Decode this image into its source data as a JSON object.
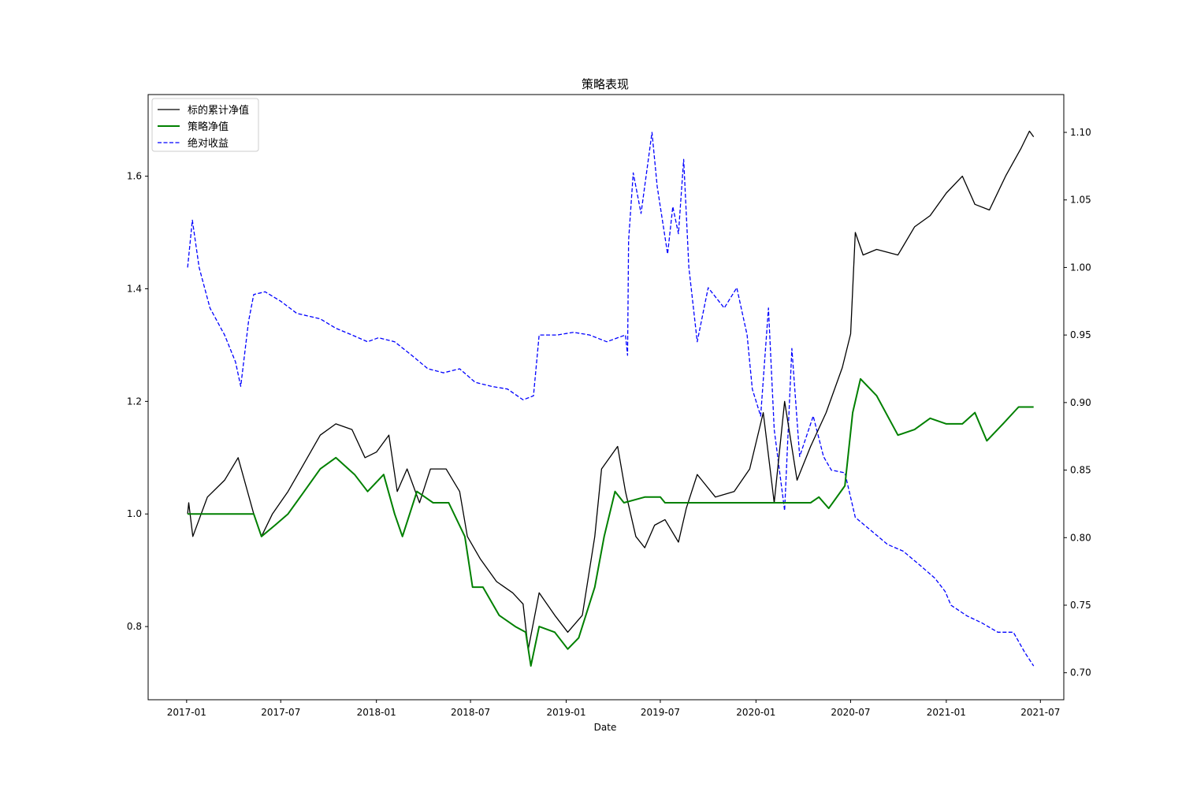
{
  "chart_data": {
    "type": "line",
    "title": "策略表现",
    "xlabel": "Date",
    "ylabel_left": "",
    "ylabel_right": "",
    "x_ticks": [
      "2017-01",
      "2017-07",
      "2018-01",
      "2018-07",
      "2019-01",
      "2019-07",
      "2020-01",
      "2020-07",
      "2021-01",
      "2021-07"
    ],
    "x_range": [
      "2016-10-19",
      "2021-08-15"
    ],
    "ylim_left": [
      0.67,
      1.745
    ],
    "ylim_right": [
      0.68,
      1.128
    ],
    "yticks_left": [
      "0.8",
      "1.0",
      "1.2",
      "1.4",
      "1.6"
    ],
    "yticks_right": [
      "0.70",
      "0.75",
      "0.80",
      "0.85",
      "0.90",
      "0.95",
      "1.00",
      "1.05",
      "1.10"
    ],
    "grid": false,
    "legend_position": "top-left",
    "series": [
      {
        "name": "标的累计净值",
        "axis": "left",
        "color": "#000000",
        "style": "solid",
        "points": [
          [
            "2017-01-03",
            1.0
          ],
          [
            "2017-01-05",
            1.02
          ],
          [
            "2017-01-13",
            0.96
          ],
          [
            "2017-02-10",
            1.03
          ],
          [
            "2017-03-15",
            1.06
          ],
          [
            "2017-04-10",
            1.1
          ],
          [
            "2017-05-10",
            1.0
          ],
          [
            "2017-05-25",
            0.96
          ],
          [
            "2017-06-15",
            1.0
          ],
          [
            "2017-07-15",
            1.04
          ],
          [
            "2017-08-15",
            1.09
          ],
          [
            "2017-09-15",
            1.14
          ],
          [
            "2017-10-15",
            1.16
          ],
          [
            "2017-11-15",
            1.15
          ],
          [
            "2017-12-10",
            1.1
          ],
          [
            "2018-01-01",
            1.11
          ],
          [
            "2018-01-25",
            1.14
          ],
          [
            "2018-02-10",
            1.04
          ],
          [
            "2018-03-01",
            1.08
          ],
          [
            "2018-03-25",
            1.02
          ],
          [
            "2018-04-15",
            1.08
          ],
          [
            "2018-05-15",
            1.08
          ],
          [
            "2018-06-10",
            1.04
          ],
          [
            "2018-06-25",
            0.96
          ],
          [
            "2018-07-20",
            0.92
          ],
          [
            "2018-08-20",
            0.88
          ],
          [
            "2018-09-20",
            0.86
          ],
          [
            "2018-10-10",
            0.84
          ],
          [
            "2018-10-20",
            0.76
          ],
          [
            "2018-11-10",
            0.86
          ],
          [
            "2018-12-10",
            0.82
          ],
          [
            "2019-01-04",
            0.79
          ],
          [
            "2019-02-01",
            0.82
          ],
          [
            "2019-02-25",
            0.96
          ],
          [
            "2019-03-10",
            1.08
          ],
          [
            "2019-04-10",
            1.12
          ],
          [
            "2019-04-25",
            1.04
          ],
          [
            "2019-05-15",
            0.96
          ],
          [
            "2019-06-01",
            0.94
          ],
          [
            "2019-06-20",
            0.98
          ],
          [
            "2019-07-10",
            0.99
          ],
          [
            "2019-08-05",
            0.95
          ],
          [
            "2019-08-20",
            1.01
          ],
          [
            "2019-09-10",
            1.07
          ],
          [
            "2019-10-15",
            1.03
          ],
          [
            "2019-11-20",
            1.04
          ],
          [
            "2019-12-20",
            1.08
          ],
          [
            "2020-01-15",
            1.18
          ],
          [
            "2020-02-05",
            1.02
          ],
          [
            "2020-02-25",
            1.2
          ],
          [
            "2020-03-20",
            1.06
          ],
          [
            "2020-04-15",
            1.12
          ],
          [
            "2020-05-15",
            1.18
          ],
          [
            "2020-06-15",
            1.26
          ],
          [
            "2020-07-01",
            1.32
          ],
          [
            "2020-07-10",
            1.5
          ],
          [
            "2020-07-25",
            1.46
          ],
          [
            "2020-08-20",
            1.47
          ],
          [
            "2020-09-30",
            1.46
          ],
          [
            "2020-11-01",
            1.51
          ],
          [
            "2020-12-01",
            1.53
          ],
          [
            "2021-01-01",
            1.57
          ],
          [
            "2021-02-01",
            1.6
          ],
          [
            "2021-02-25",
            1.55
          ],
          [
            "2021-03-25",
            1.54
          ],
          [
            "2021-04-25",
            1.6
          ],
          [
            "2021-05-25",
            1.65
          ],
          [
            "2021-06-10",
            1.68
          ],
          [
            "2021-06-18",
            1.67
          ]
        ]
      },
      {
        "name": "策略净值",
        "axis": "left",
        "color": "#008000",
        "style": "solid",
        "points": [
          [
            "2017-01-03",
            1.0
          ],
          [
            "2017-05-10",
            1.0
          ],
          [
            "2017-05-25",
            0.96
          ],
          [
            "2017-06-20",
            0.98
          ],
          [
            "2017-07-15",
            1.0
          ],
          [
            "2017-08-15",
            1.04
          ],
          [
            "2017-09-15",
            1.08
          ],
          [
            "2017-10-15",
            1.1
          ],
          [
            "2017-11-20",
            1.07
          ],
          [
            "2017-12-15",
            1.04
          ],
          [
            "2018-01-15",
            1.07
          ],
          [
            "2018-02-05",
            1.0
          ],
          [
            "2018-02-20",
            0.96
          ],
          [
            "2018-03-20",
            1.04
          ],
          [
            "2018-04-20",
            1.02
          ],
          [
            "2018-05-20",
            1.02
          ],
          [
            "2018-06-20",
            0.96
          ],
          [
            "2018-07-05",
            0.87
          ],
          [
            "2018-07-25",
            0.87
          ],
          [
            "2018-08-25",
            0.82
          ],
          [
            "2018-09-25",
            0.8
          ],
          [
            "2018-10-15",
            0.79
          ],
          [
            "2018-10-25",
            0.73
          ],
          [
            "2018-11-10",
            0.8
          ],
          [
            "2018-12-10",
            0.79
          ],
          [
            "2019-01-04",
            0.76
          ],
          [
            "2019-01-25",
            0.78
          ],
          [
            "2019-02-25",
            0.87
          ],
          [
            "2019-03-15",
            0.96
          ],
          [
            "2019-04-05",
            1.04
          ],
          [
            "2019-04-22",
            1.02
          ],
          [
            "2019-06-01",
            1.03
          ],
          [
            "2019-07-01",
            1.03
          ],
          [
            "2019-07-10",
            1.02
          ],
          [
            "2020-04-15",
            1.02
          ],
          [
            "2020-05-01",
            1.03
          ],
          [
            "2020-05-20",
            1.01
          ],
          [
            "2020-06-20",
            1.05
          ],
          [
            "2020-07-05",
            1.18
          ],
          [
            "2020-07-20",
            1.24
          ],
          [
            "2020-08-20",
            1.21
          ],
          [
            "2020-09-30",
            1.14
          ],
          [
            "2020-11-01",
            1.15
          ],
          [
            "2020-12-01",
            1.17
          ],
          [
            "2021-01-01",
            1.16
          ],
          [
            "2021-02-01",
            1.16
          ],
          [
            "2021-02-25",
            1.18
          ],
          [
            "2021-03-20",
            1.13
          ],
          [
            "2021-04-20",
            1.16
          ],
          [
            "2021-05-20",
            1.19
          ],
          [
            "2021-06-18",
            1.19
          ]
        ]
      },
      {
        "name": "绝对收益",
        "axis": "right",
        "color": "#0000ff",
        "style": "dashed",
        "points": [
          [
            "2017-01-03",
            1.0
          ],
          [
            "2017-01-12",
            1.035
          ],
          [
            "2017-01-25",
            1.0
          ],
          [
            "2017-02-15",
            0.97
          ],
          [
            "2017-03-15",
            0.95
          ],
          [
            "2017-04-05",
            0.93
          ],
          [
            "2017-04-15",
            0.912
          ],
          [
            "2017-04-30",
            0.96
          ],
          [
            "2017-05-10",
            0.98
          ],
          [
            "2017-06-01",
            0.982
          ],
          [
            "2017-07-01",
            0.975
          ],
          [
            "2017-08-01",
            0.966
          ],
          [
            "2017-09-15",
            0.962
          ],
          [
            "2017-10-15",
            0.955
          ],
          [
            "2017-11-15",
            0.95
          ],
          [
            "2017-12-15",
            0.945
          ],
          [
            "2018-01-05",
            0.948
          ],
          [
            "2018-02-05",
            0.945
          ],
          [
            "2018-03-10",
            0.935
          ],
          [
            "2018-04-10",
            0.925
          ],
          [
            "2018-05-10",
            0.922
          ],
          [
            "2018-06-10",
            0.925
          ],
          [
            "2018-07-10",
            0.915
          ],
          [
            "2018-08-10",
            0.912
          ],
          [
            "2018-09-10",
            0.91
          ],
          [
            "2018-10-10",
            0.902
          ],
          [
            "2018-10-30",
            0.905
          ],
          [
            "2018-11-10",
            0.95
          ],
          [
            "2018-12-15",
            0.95
          ],
          [
            "2019-01-15",
            0.952
          ],
          [
            "2019-02-15",
            0.95
          ],
          [
            "2019-03-20",
            0.945
          ],
          [
            "2019-04-25",
            0.95
          ],
          [
            "2019-04-29",
            0.935
          ],
          [
            "2019-05-01",
            1.02
          ],
          [
            "2019-05-10",
            1.07
          ],
          [
            "2019-05-25",
            1.04
          ],
          [
            "2019-06-15",
            1.1
          ],
          [
            "2019-06-25",
            1.06
          ],
          [
            "2019-07-15",
            1.01
          ],
          [
            "2019-07-25",
            1.045
          ],
          [
            "2019-08-05",
            1.025
          ],
          [
            "2019-08-15",
            1.08
          ],
          [
            "2019-08-25",
            1.0
          ],
          [
            "2019-09-10",
            0.945
          ],
          [
            "2019-10-01",
            0.985
          ],
          [
            "2019-11-01",
            0.97
          ],
          [
            "2019-11-25",
            0.985
          ],
          [
            "2019-12-15",
            0.95
          ],
          [
            "2019-12-25",
            0.91
          ],
          [
            "2020-01-10",
            0.89
          ],
          [
            "2020-01-25",
            0.97
          ],
          [
            "2020-02-05",
            0.88
          ],
          [
            "2020-02-25",
            0.82
          ],
          [
            "2020-03-10",
            0.94
          ],
          [
            "2020-03-25",
            0.86
          ],
          [
            "2020-04-20",
            0.89
          ],
          [
            "2020-05-10",
            0.86
          ],
          [
            "2020-05-25",
            0.85
          ],
          [
            "2020-06-20",
            0.848
          ],
          [
            "2020-07-10",
            0.815
          ],
          [
            "2020-08-10",
            0.805
          ],
          [
            "2020-09-10",
            0.795
          ],
          [
            "2020-10-10",
            0.79
          ],
          [
            "2020-11-10",
            0.78
          ],
          [
            "2020-12-10",
            0.77
          ],
          [
            "2020-12-30",
            0.76
          ],
          [
            "2021-01-10",
            0.75
          ],
          [
            "2021-02-10",
            0.742
          ],
          [
            "2021-03-10",
            0.737
          ],
          [
            "2021-04-10",
            0.73
          ],
          [
            "2021-05-10",
            0.73
          ],
          [
            "2021-06-01",
            0.715
          ],
          [
            "2021-06-18",
            0.705
          ]
        ]
      }
    ]
  }
}
